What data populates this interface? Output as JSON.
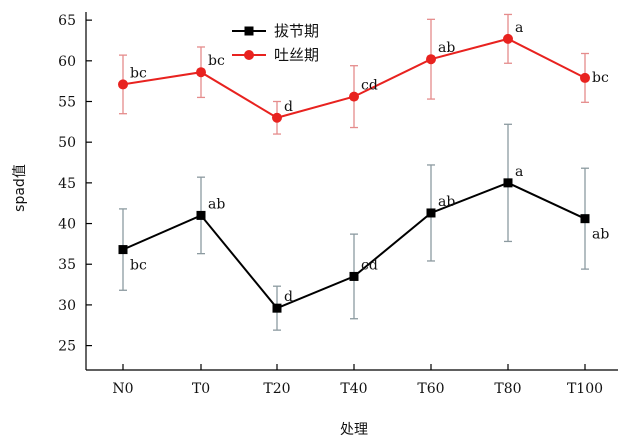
{
  "chart_data": {
    "type": "line",
    "title": "",
    "xlabel": "处理",
    "ylabel": "spad值",
    "categories": [
      "N0",
      "T0",
      "T20",
      "T40",
      "T60",
      "T80",
      "T100"
    ],
    "ylim": [
      22,
      66
    ],
    "yticks": [
      25,
      30,
      35,
      40,
      45,
      50,
      55,
      60,
      65
    ],
    "grid": false,
    "legend_position": "top-center",
    "series": [
      {
        "name": "拔节期",
        "color": "#000000",
        "errorbar_color": "#8c9aa0",
        "marker": "square",
        "values": [
          36.8,
          41.0,
          29.6,
          33.5,
          41.3,
          45.0,
          40.6
        ],
        "error": [
          5.0,
          4.7,
          2.7,
          5.2,
          5.9,
          7.2,
          6.2
        ],
        "labels": [
          "bc",
          "ab",
          "d",
          "cd",
          "ab",
          "a",
          "ab"
        ]
      },
      {
        "name": "吐丝期",
        "color": "#e8221f",
        "errorbar_color": "#e58c8c",
        "marker": "circle",
        "values": [
          57.1,
          58.6,
          53.0,
          55.6,
          60.2,
          62.7,
          57.9
        ],
        "error": [
          3.6,
          3.1,
          2.0,
          3.8,
          4.9,
          3.0,
          3.0
        ],
        "labels": [
          "bc",
          "bc",
          "d",
          "cd",
          "ab",
          "a",
          "bc"
        ]
      }
    ]
  }
}
